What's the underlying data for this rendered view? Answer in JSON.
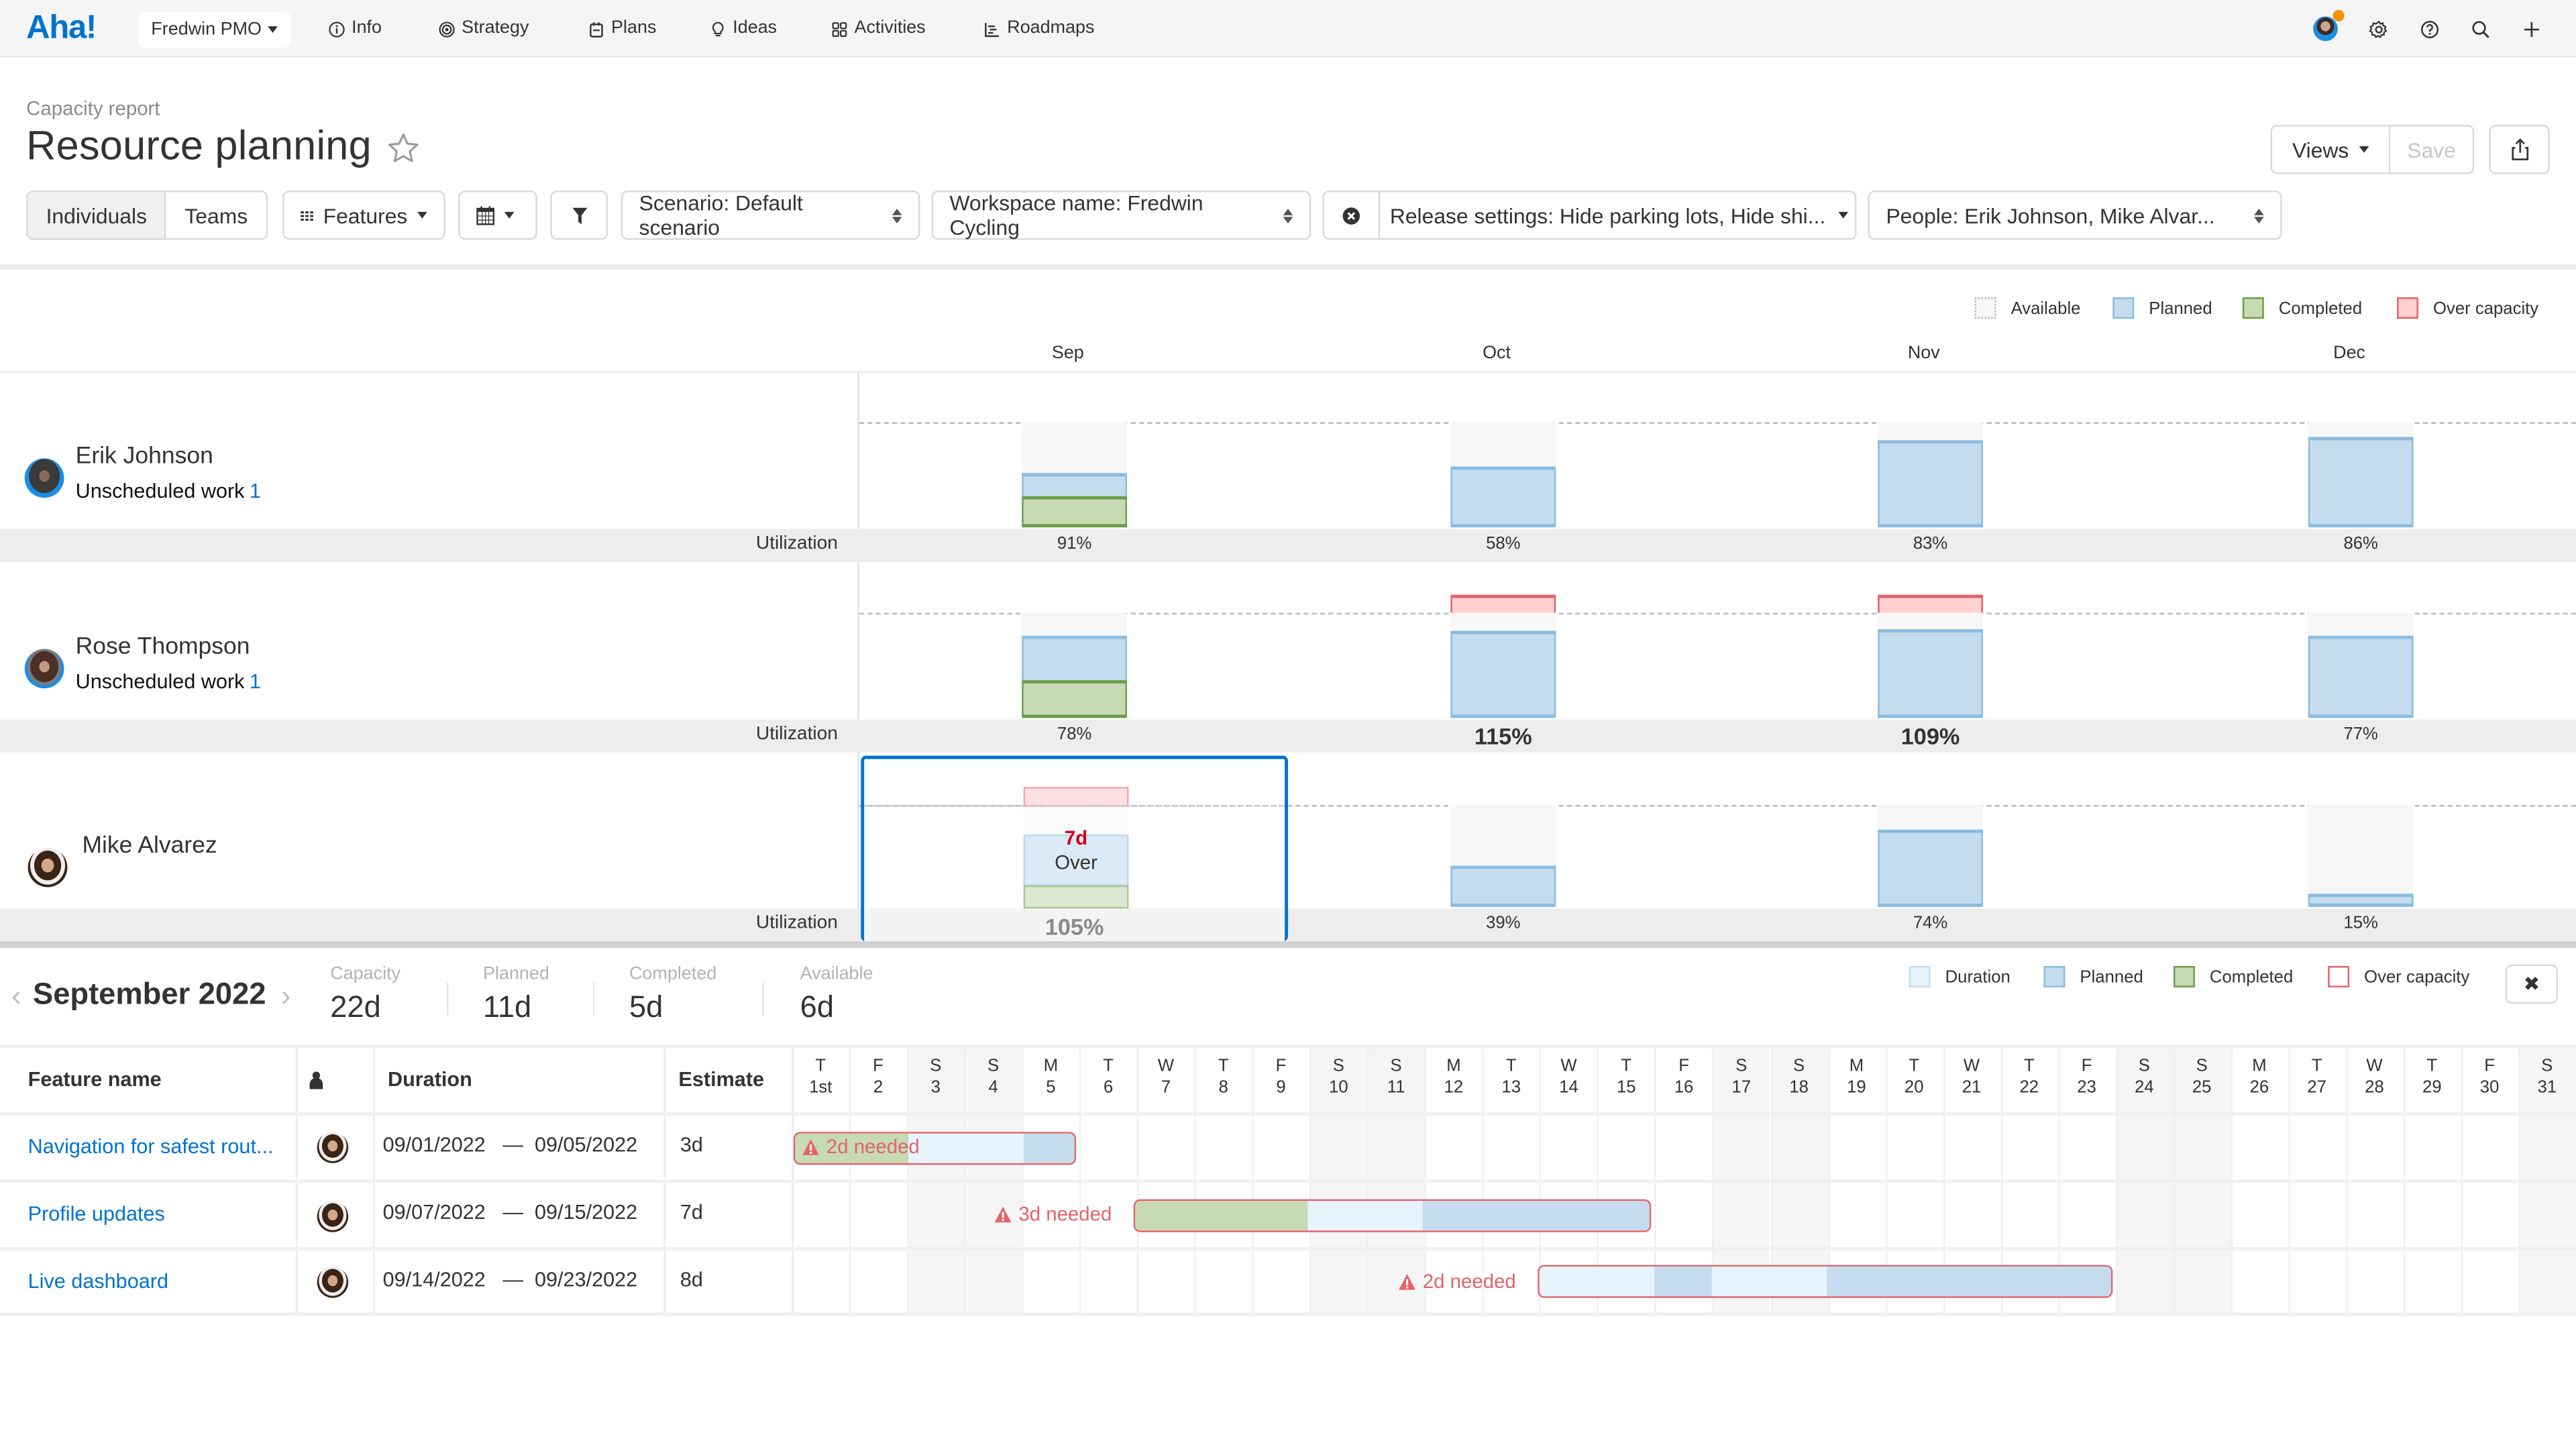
{
  "nav": {
    "logo": "Aha!",
    "workspace": "Fredwin PMO",
    "items": [
      {
        "label": "Info",
        "icon": "info-icon"
      },
      {
        "label": "Strategy",
        "icon": "target-icon"
      },
      {
        "label": "Plans",
        "icon": "calendar-icon"
      },
      {
        "label": "Ideas",
        "icon": "lightbulb-icon"
      },
      {
        "label": "Activities",
        "icon": "grid-icon"
      },
      {
        "label": "Roadmaps",
        "icon": "roadmap-icon"
      }
    ],
    "right_icons": [
      "user-avatar",
      "gear-icon",
      "help-icon",
      "search-icon",
      "plus-icon"
    ],
    "notification_color": "#f59200"
  },
  "header": {
    "breadcrumb": "Capacity report",
    "title": "Resource planning",
    "views_label": "Views",
    "save_label": "Save"
  },
  "toolbar": {
    "segment": {
      "active": "Individuals",
      "inactive": "Teams"
    },
    "features_label": "Features",
    "scenario": "Scenario: Default scenario",
    "workspace_filter": "Workspace name: Fredwin Cycling",
    "release_settings": "Release settings: Hide parking lots, Hide shi...",
    "people": "People: Erik Johnson, Mike Alvar..."
  },
  "legend": {
    "available": "Available",
    "planned": "Planned",
    "completed": "Completed",
    "over_capacity": "Over capacity"
  },
  "colors": {
    "accent": "#0073cf",
    "planned": "#c5dcef",
    "completed": "#c6dab3",
    "over_capacity": "#ffd0d0",
    "over_border": "#e3636a",
    "available": "#f7f7f7"
  },
  "chart_data": {
    "type": "bar",
    "title": "Capacity report — Resource planning",
    "categories": [
      "Sep",
      "Oct",
      "Nov",
      "Dec"
    ],
    "row_label": "Utilization",
    "series": [
      {
        "name": "Erik Johnson",
        "unscheduled_work": 1,
        "utilization": [
          "91%",
          "58%",
          "83%",
          "86%"
        ],
        "utilization_values": [
          91,
          58,
          83,
          86
        ]
      },
      {
        "name": "Rose Thompson",
        "unscheduled_work": 1,
        "utilization": [
          "78%",
          "115%",
          "109%",
          "77%"
        ],
        "utilization_values": [
          78,
          115,
          109,
          77
        ]
      },
      {
        "name": "Mike Alvarez",
        "utilization": [
          "105%",
          "39%",
          "74%",
          "15%"
        ],
        "utilization_values": [
          105,
          39,
          74,
          15
        ]
      }
    ],
    "stacked_segments": [
      "Completed",
      "Planned",
      "Available",
      "Over capacity"
    ],
    "capacity_line": "dashed at 100%",
    "selected_cell": {
      "person": "Mike Alvarez",
      "month": "Sep",
      "over_amount": "7d",
      "over_label": "Over",
      "utilization": "105%"
    }
  },
  "people": [
    {
      "name": "Erik Johnson",
      "unscheduled_label": "Unscheduled work",
      "unscheduled_count": "1"
    },
    {
      "name": "Rose Thompson",
      "unscheduled_label": "Unscheduled work",
      "unscheduled_count": "1"
    },
    {
      "name": "Mike Alvarez"
    }
  ],
  "utilization_label": "Utilization",
  "months": [
    "Sep",
    "Oct",
    "Nov",
    "Dec"
  ],
  "util": {
    "erik": [
      "91%",
      "58%",
      "83%",
      "86%"
    ],
    "rose": [
      "78%",
      "115%",
      "109%",
      "77%"
    ],
    "mike": [
      "105%",
      "39%",
      "74%",
      "15%"
    ]
  },
  "selected": {
    "over_amount": "7d",
    "over_label": "Over",
    "util": "105%"
  },
  "detail": {
    "month_title": "September 2022",
    "stats": [
      {
        "label": "Capacity",
        "value": "22d"
      },
      {
        "label": "Planned",
        "value": "11d"
      },
      {
        "label": "Completed",
        "value": "5d"
      },
      {
        "label": "Available",
        "value": "6d"
      }
    ],
    "legend": {
      "duration": "Duration",
      "planned": "Planned",
      "completed": "Completed",
      "over_capacity": "Over capacity"
    },
    "columns": {
      "feature_name": "Feature name",
      "duration": "Duration",
      "estimate": "Estimate"
    },
    "days": [
      {
        "d": "T",
        "n": "1st"
      },
      {
        "d": "F",
        "n": "2"
      },
      {
        "d": "S",
        "n": "3"
      },
      {
        "d": "S",
        "n": "4"
      },
      {
        "d": "M",
        "n": "5"
      },
      {
        "d": "T",
        "n": "6"
      },
      {
        "d": "W",
        "n": "7"
      },
      {
        "d": "T",
        "n": "8"
      },
      {
        "d": "F",
        "n": "9"
      },
      {
        "d": "S",
        "n": "10"
      },
      {
        "d": "S",
        "n": "11"
      },
      {
        "d": "M",
        "n": "12"
      },
      {
        "d": "T",
        "n": "13"
      },
      {
        "d": "W",
        "n": "14"
      },
      {
        "d": "T",
        "n": "15"
      },
      {
        "d": "F",
        "n": "16"
      },
      {
        "d": "S",
        "n": "17"
      },
      {
        "d": "S",
        "n": "18"
      },
      {
        "d": "M",
        "n": "19"
      },
      {
        "d": "T",
        "n": "20"
      },
      {
        "d": "W",
        "n": "21"
      },
      {
        "d": "T",
        "n": "22"
      },
      {
        "d": "F",
        "n": "23"
      },
      {
        "d": "S",
        "n": "24"
      },
      {
        "d": "S",
        "n": "25"
      },
      {
        "d": "M",
        "n": "26"
      },
      {
        "d": "T",
        "n": "27"
      },
      {
        "d": "W",
        "n": "28"
      },
      {
        "d": "T",
        "n": "29"
      },
      {
        "d": "F",
        "n": "30"
      },
      {
        "d": "S",
        "n": "31"
      }
    ],
    "features": [
      {
        "name": "Navigation for safest rout...",
        "start": "09/01/2022",
        "end": "09/05/2022",
        "sep": "—",
        "estimate": "3d",
        "needed": "2d needed"
      },
      {
        "name": "Profile updates",
        "start": "09/07/2022",
        "end": "09/15/2022",
        "sep": "—",
        "estimate": "7d",
        "needed": "3d needed"
      },
      {
        "name": "Live dashboard",
        "start": "09/14/2022",
        "end": "09/23/2022",
        "sep": "—",
        "estimate": "8d",
        "needed": "2d needed"
      }
    ]
  }
}
